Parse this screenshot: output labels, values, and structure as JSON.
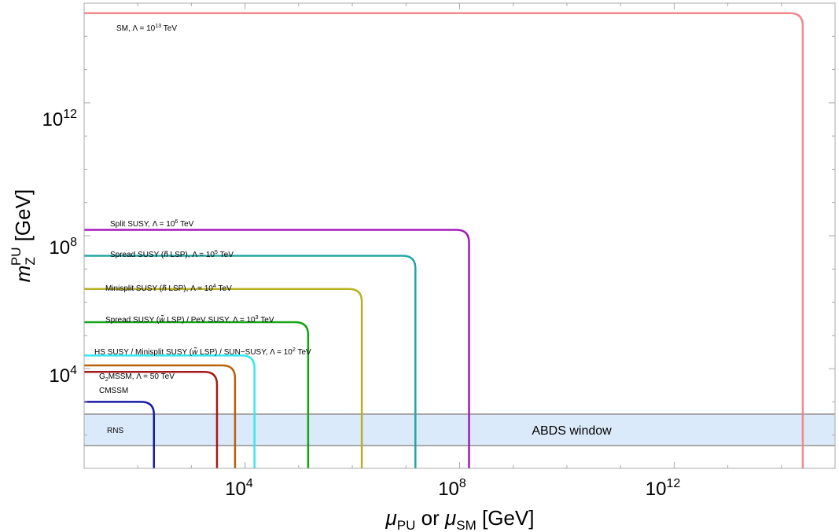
{
  "chart_data": {
    "type": "line",
    "xlabel": "μPU or μSM [GeV]",
    "ylabel": "mZPU [GeV]",
    "x_scale": "log",
    "y_scale": "log",
    "xlim": [
      10,
      1000000000000000.0
    ],
    "ylim": [
      10,
      1000000000000000.0
    ],
    "x_tick_labels": [
      "10^4",
      "10^8",
      "10^12"
    ],
    "y_tick_labels": [
      "10^4",
      "10^8",
      "10^12"
    ],
    "band": {
      "label": "ABDS window",
      "y_range": [
        250,
        2000
      ],
      "color": "#dbeafb"
    },
    "series": [
      {
        "name": "RNS",
        "color": "#1a1aa6",
        "y": 1000,
        "x_vertical": 200
      },
      {
        "name": "CMSSM",
        "color": "#a31919",
        "y": 8000,
        "x_vertical": 3000
      },
      {
        "name": "G2MSSM, Λ = 50 TeV",
        "color": "#b8620f",
        "y": 12500,
        "x_vertical": 6500
      },
      {
        "name": "HS SUSY / Minisplit SUSY (w̃ LSP) / SUN-SUSY, Λ = 10^2 TeV",
        "color": "#33e8ef",
        "y": 25000,
        "x_vertical": 15000
      },
      {
        "name": "Spread SUSY (w̃ LSP) / PeV SUSY, Λ = 10^3 TeV",
        "color": "#15a415",
        "y": 250000,
        "x_vertical": 150000
      },
      {
        "name": "Minisplit SUSY (h̃ LSP), Λ = 10^4 TeV",
        "color": "#b8b020",
        "y": 2500000,
        "x_vertical": 1500000
      },
      {
        "name": "Spread SUSY (h̃ LSP), Λ = 10^5 TeV",
        "color": "#22a6a6",
        "y": 25000000,
        "x_vertical": 15000000
      },
      {
        "name": "Split SUSY, Λ = 10^6 TeV",
        "color": "#a31ab8",
        "y": 150000000,
        "x_vertical": 150000000
      },
      {
        "name": "SM, Λ = 10^13 TeV",
        "color": "#f08a8a",
        "y": 500000000000000.0,
        "x_vertical": 250000000000000.0
      }
    ]
  },
  "labels": {
    "tick_base": "10",
    "x_exps": [
      "4",
      "8",
      "12"
    ],
    "y_exps": [
      "4",
      "8",
      "12"
    ],
    "x_title_mu": "μ",
    "x_title_sub1": "PU",
    "x_title_mid": " or ",
    "x_title_sub2": "SM",
    "x_title_end": " [GeV]",
    "y_title_m": "m",
    "y_title_sub": "Z",
    "y_title_sup": "PU",
    "y_title_end": " [GeV]",
    "band": "ABDS window",
    "curves": {
      "rns": "RNS",
      "cmssm": "CMSSM",
      "g2mssm_a": "G",
      "g2mssm_sub": "2",
      "g2mssm_b": "MSSM, Λ = 50 TeV",
      "hs_a": "HS SUSY / Minisplit SUSY (",
      "hs_w": "w̃",
      "hs_b": " LSP) / SUN−SUSY, Λ = 10",
      "hs_exp": "2",
      "hs_c": " TeV",
      "spread_w_a": "Spread SUSY (",
      "spread_w_w": "w̃",
      "spread_w_b": " LSP) / PeV SUSY, Λ = 10",
      "spread_w_exp": "3",
      "spread_w_c": " TeV",
      "minisplit_h_a": "Minisplit SUSY (",
      "minisplit_h_h": "h̃",
      "minisplit_h_b": " LSP), Λ = 10",
      "minisplit_h_exp": "4",
      "minisplit_h_c": " TeV",
      "spread_h_a": "Spread SUSY (",
      "spread_h_h": "h̃",
      "spread_h_b": " LSP), Λ = 10",
      "spread_h_exp": "5",
      "spread_h_c": " TeV",
      "split_a": "Split SUSY, Λ = 10",
      "split_exp": "6",
      "split_c": " TeV",
      "sm_a": "SM, Λ = 10",
      "sm_exp": "13",
      "sm_c": " TeV"
    }
  }
}
